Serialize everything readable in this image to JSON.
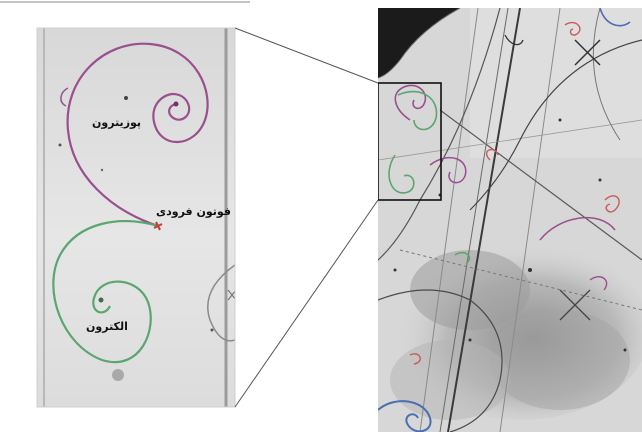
{
  "figure": {
    "labels": {
      "positron": "پوزیترون",
      "incoming_photon": "فوتون فرودی",
      "electron": "الکترون"
    },
    "colors": {
      "positron_track": "#9a4f8f",
      "electron_track": "#5aa66f",
      "photon_vertex": "#c83a3a",
      "spiral_blue": "#4a6fb0",
      "spiral_red": "#c85a5a",
      "background_gray": "#cfcfcf"
    },
    "icons": [
      "inset-frame-icon",
      "zoom-connector-lines-icon"
    ]
  }
}
